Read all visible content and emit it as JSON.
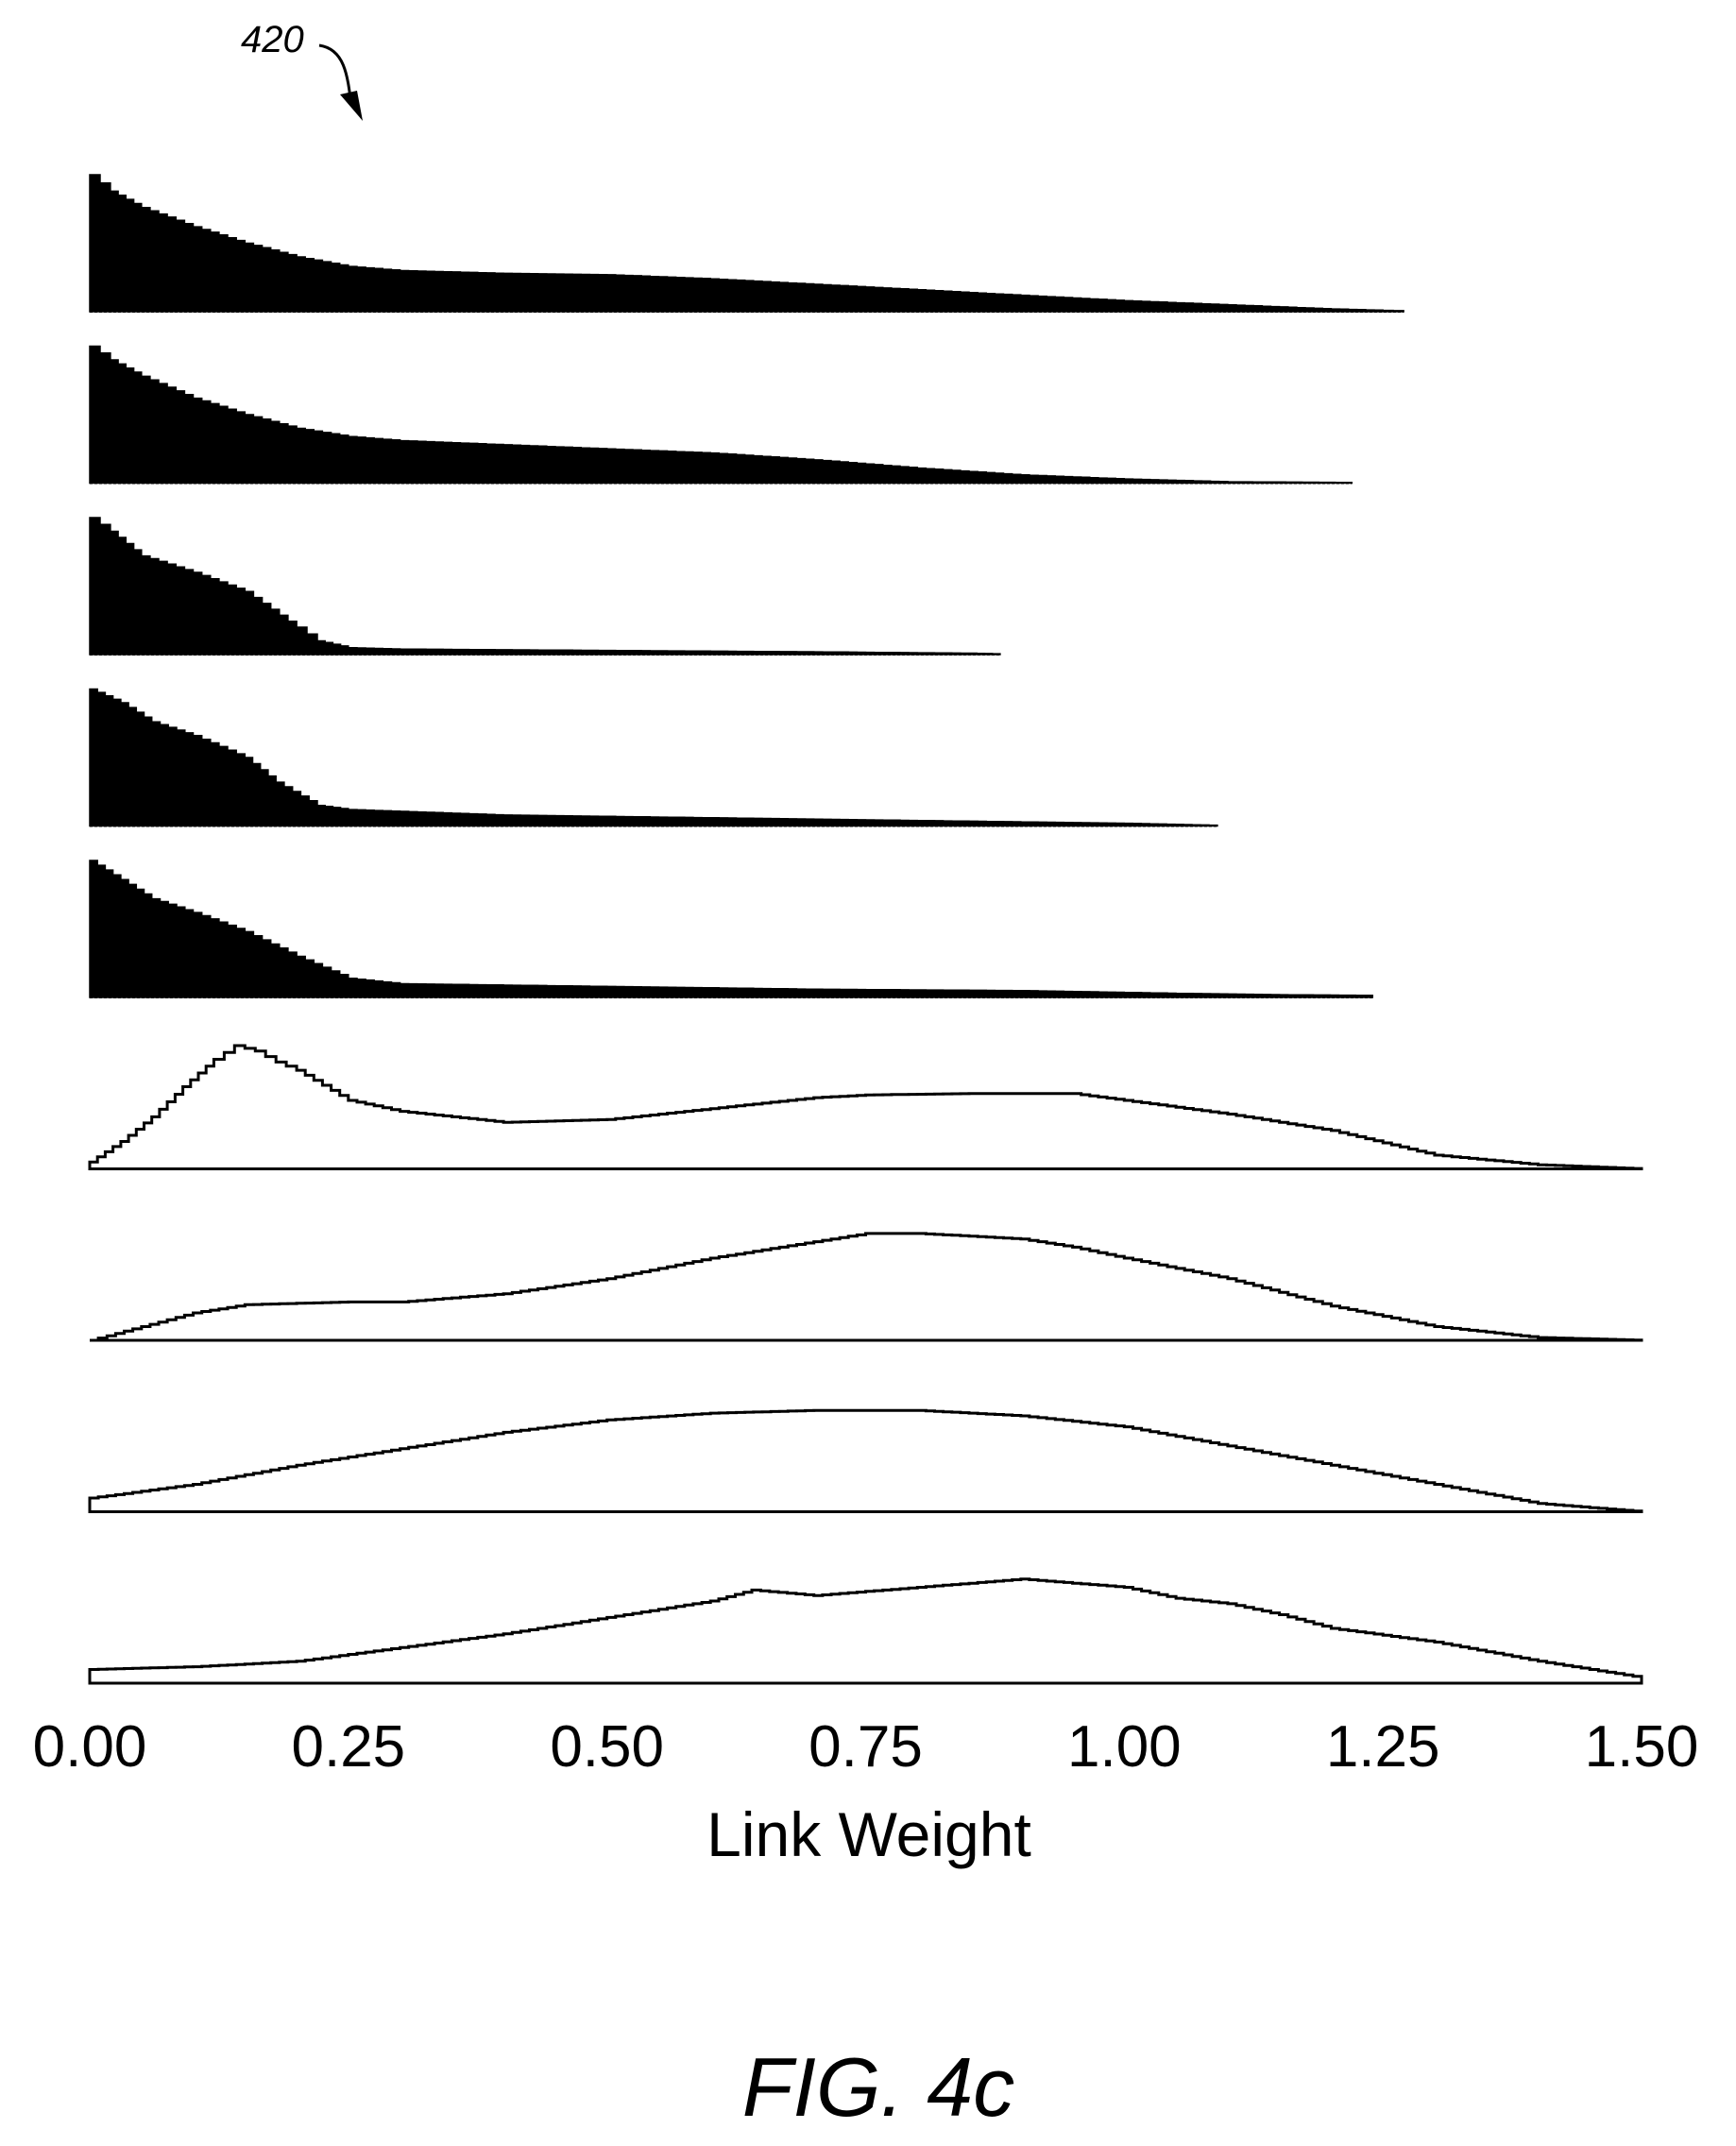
{
  "figure": {
    "reference_numeral": "420",
    "caption": "FIG. 4c"
  },
  "chart_data": {
    "type": "area",
    "xlabel": "Link Weight",
    "xlim": [
      0.0,
      1.5
    ],
    "x_ticks": [
      "0.00",
      "0.25",
      "0.50",
      "0.75",
      "1.00",
      "1.25",
      "1.50"
    ],
    "x_tick_values": [
      0.0,
      0.25,
      0.5,
      0.75,
      1.0,
      1.25,
      1.5
    ],
    "ylim": [
      0,
      1
    ],
    "grid": false,
    "legend": "none",
    "colors": {
      "ink": "#000000",
      "background": "#ffffff"
    },
    "series": [
      {
        "style": "filled",
        "points": [
          [
            0.0,
            1.0
          ],
          [
            0.02,
            0.88
          ],
          [
            0.05,
            0.76
          ],
          [
            0.1,
            0.62
          ],
          [
            0.15,
            0.5
          ],
          [
            0.2,
            0.4
          ],
          [
            0.25,
            0.33
          ],
          [
            0.3,
            0.3
          ],
          [
            0.4,
            0.28
          ],
          [
            0.5,
            0.27
          ],
          [
            0.6,
            0.24
          ],
          [
            0.7,
            0.2
          ],
          [
            0.8,
            0.16
          ],
          [
            0.9,
            0.12
          ],
          [
            1.0,
            0.08
          ],
          [
            1.1,
            0.05
          ],
          [
            1.2,
            0.02
          ],
          [
            1.25,
            0.01
          ],
          [
            1.27,
            0.005
          ]
        ]
      },
      {
        "style": "filled",
        "points": [
          [
            0.0,
            1.0
          ],
          [
            0.02,
            0.9
          ],
          [
            0.05,
            0.78
          ],
          [
            0.1,
            0.62
          ],
          [
            0.15,
            0.5
          ],
          [
            0.2,
            0.4
          ],
          [
            0.25,
            0.34
          ],
          [
            0.3,
            0.31
          ],
          [
            0.4,
            0.28
          ],
          [
            0.5,
            0.25
          ],
          [
            0.6,
            0.22
          ],
          [
            0.7,
            0.17
          ],
          [
            0.8,
            0.11
          ],
          [
            0.9,
            0.06
          ],
          [
            1.0,
            0.03
          ],
          [
            1.1,
            0.01
          ],
          [
            1.22,
            0.005
          ]
        ]
      },
      {
        "style": "filled",
        "points": [
          [
            0.0,
            1.0
          ],
          [
            0.02,
            0.9
          ],
          [
            0.05,
            0.72
          ],
          [
            0.1,
            0.6
          ],
          [
            0.15,
            0.46
          ],
          [
            0.2,
            0.2
          ],
          [
            0.22,
            0.1
          ],
          [
            0.25,
            0.05
          ],
          [
            0.3,
            0.04
          ],
          [
            0.5,
            0.03
          ],
          [
            0.7,
            0.02
          ],
          [
            0.85,
            0.01
          ],
          [
            0.88,
            0.005
          ]
        ]
      },
      {
        "style": "filled",
        "points": [
          [
            0.0,
            1.0
          ],
          [
            0.03,
            0.9
          ],
          [
            0.06,
            0.76
          ],
          [
            0.1,
            0.66
          ],
          [
            0.15,
            0.5
          ],
          [
            0.18,
            0.32
          ],
          [
            0.22,
            0.15
          ],
          [
            0.25,
            0.12
          ],
          [
            0.4,
            0.08
          ],
          [
            0.6,
            0.06
          ],
          [
            0.8,
            0.04
          ],
          [
            1.0,
            0.02
          ],
          [
            1.09,
            0.005
          ]
        ]
      },
      {
        "style": "filled",
        "points": [
          [
            0.0,
            1.0
          ],
          [
            0.03,
            0.86
          ],
          [
            0.06,
            0.72
          ],
          [
            0.1,
            0.62
          ],
          [
            0.15,
            0.48
          ],
          [
            0.2,
            0.3
          ],
          [
            0.25,
            0.14
          ],
          [
            0.3,
            0.1
          ],
          [
            0.5,
            0.08
          ],
          [
            0.7,
            0.06
          ],
          [
            0.9,
            0.05
          ],
          [
            1.05,
            0.03
          ],
          [
            1.15,
            0.02
          ],
          [
            1.24,
            0.015
          ]
        ]
      },
      {
        "style": "outline",
        "points": [
          [
            0.0,
            0.05
          ],
          [
            0.03,
            0.2
          ],
          [
            0.06,
            0.38
          ],
          [
            0.09,
            0.6
          ],
          [
            0.12,
            0.8
          ],
          [
            0.14,
            0.9
          ],
          [
            0.16,
            0.86
          ],
          [
            0.18,
            0.78
          ],
          [
            0.2,
            0.72
          ],
          [
            0.25,
            0.5
          ],
          [
            0.3,
            0.42
          ],
          [
            0.4,
            0.34
          ],
          [
            0.5,
            0.36
          ],
          [
            0.6,
            0.44
          ],
          [
            0.7,
            0.52
          ],
          [
            0.75,
            0.54
          ],
          [
            0.85,
            0.55
          ],
          [
            0.95,
            0.55
          ],
          [
            1.0,
            0.5
          ],
          [
            1.1,
            0.4
          ],
          [
            1.2,
            0.28
          ],
          [
            1.3,
            0.1
          ],
          [
            1.4,
            0.03
          ],
          [
            1.5,
            0.0
          ]
        ]
      },
      {
        "style": "outline",
        "points": [
          [
            0.0,
            0.0
          ],
          [
            0.05,
            0.1
          ],
          [
            0.1,
            0.2
          ],
          [
            0.15,
            0.26
          ],
          [
            0.2,
            0.27
          ],
          [
            0.25,
            0.28
          ],
          [
            0.3,
            0.28
          ],
          [
            0.4,
            0.34
          ],
          [
            0.5,
            0.45
          ],
          [
            0.6,
            0.6
          ],
          [
            0.7,
            0.72
          ],
          [
            0.75,
            0.78
          ],
          [
            0.8,
            0.78
          ],
          [
            0.9,
            0.74
          ],
          [
            0.95,
            0.68
          ],
          [
            1.0,
            0.6
          ],
          [
            1.1,
            0.45
          ],
          [
            1.2,
            0.25
          ],
          [
            1.3,
            0.1
          ],
          [
            1.4,
            0.02
          ],
          [
            1.5,
            0.0
          ]
        ]
      },
      {
        "style": "outline",
        "points": [
          [
            0.0,
            0.1
          ],
          [
            0.1,
            0.2
          ],
          [
            0.2,
            0.34
          ],
          [
            0.3,
            0.46
          ],
          [
            0.4,
            0.58
          ],
          [
            0.5,
            0.67
          ],
          [
            0.6,
            0.72
          ],
          [
            0.7,
            0.74
          ],
          [
            0.8,
            0.74
          ],
          [
            0.9,
            0.7
          ],
          [
            1.0,
            0.62
          ],
          [
            1.1,
            0.48
          ],
          [
            1.2,
            0.34
          ],
          [
            1.3,
            0.2
          ],
          [
            1.4,
            0.06
          ],
          [
            1.5,
            0.0
          ]
        ]
      },
      {
        "style": "outline",
        "points": [
          [
            0.0,
            0.1
          ],
          [
            0.1,
            0.12
          ],
          [
            0.2,
            0.16
          ],
          [
            0.3,
            0.26
          ],
          [
            0.4,
            0.36
          ],
          [
            0.5,
            0.48
          ],
          [
            0.6,
            0.6
          ],
          [
            0.64,
            0.68
          ],
          [
            0.7,
            0.64
          ],
          [
            0.8,
            0.7
          ],
          [
            0.9,
            0.76
          ],
          [
            1.0,
            0.7
          ],
          [
            1.05,
            0.62
          ],
          [
            1.1,
            0.58
          ],
          [
            1.15,
            0.5
          ],
          [
            1.2,
            0.4
          ],
          [
            1.3,
            0.3
          ],
          [
            1.4,
            0.16
          ],
          [
            1.5,
            0.04
          ]
        ]
      }
    ]
  }
}
